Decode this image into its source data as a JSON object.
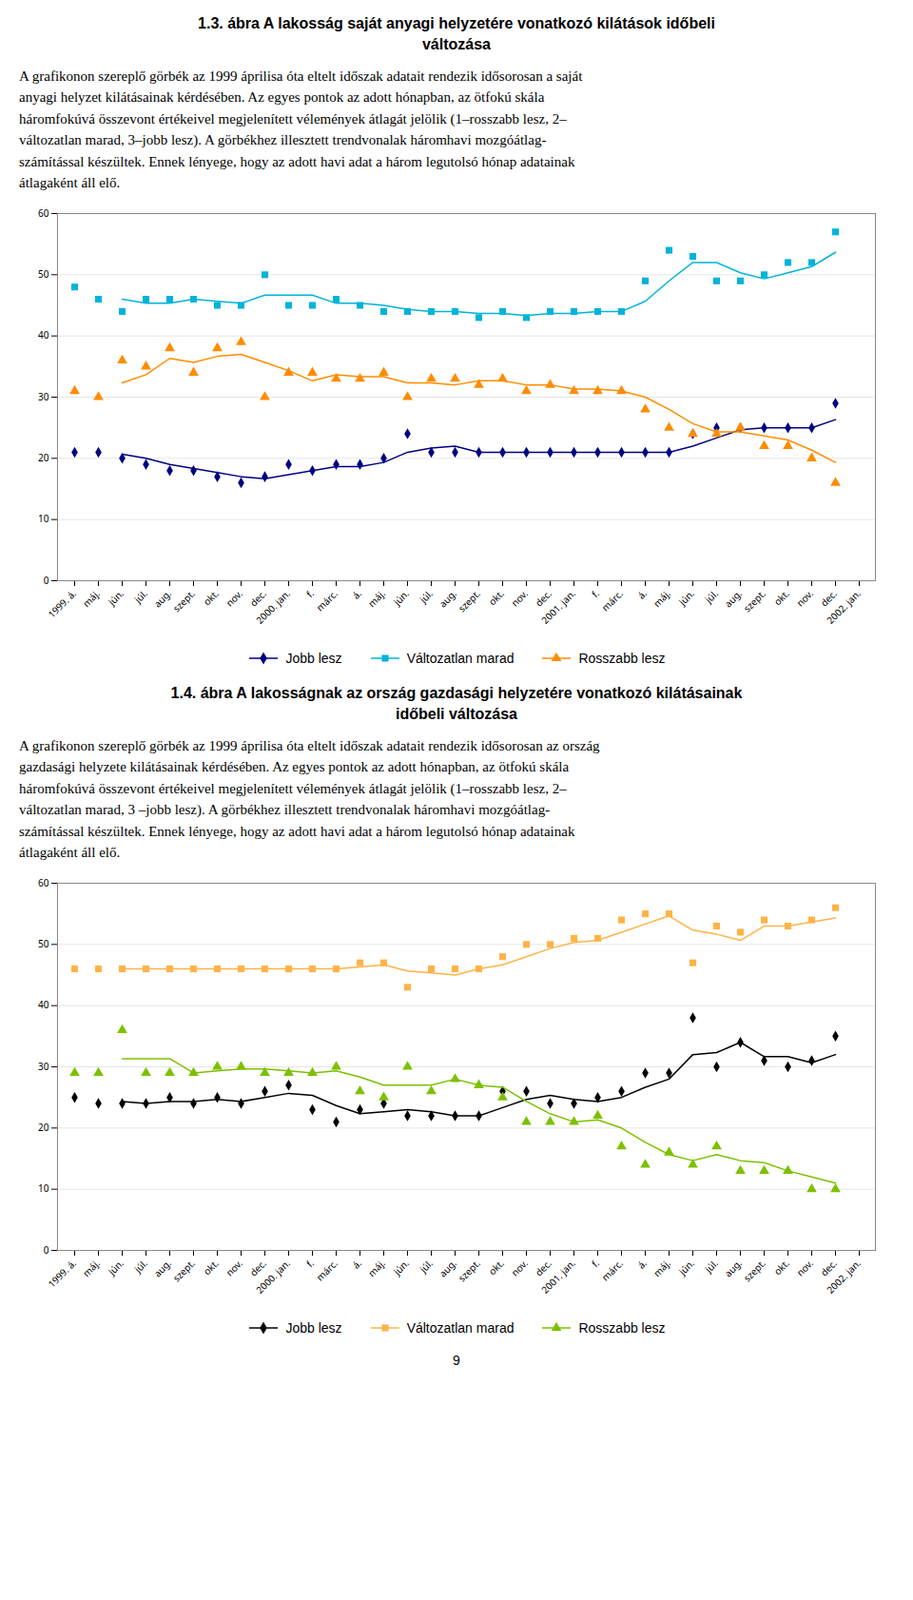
{
  "chart_data": [
    {
      "type": "scatter",
      "title": "1.3. ábra A lakosság saját anyagi helyzetére vonatkozó kilátások időbeli\nváltozása",
      "subtitle": "A grafikonon szereplő görbék az 1999 áprilisa óta eltelt időszak adatait rendezik idősorosan a saját\nanyagi helyzet kilátásainak kérdésében. Az egyes pontok az adott hónapban, az ötfokú skála\nháromfokúvá összevont értékeivel megjelenített vélemények átlagát jelölik (1–rosszabb lesz, 2–\nváltozatlan marad, 3–jobb lesz). A görbékhez illesztett trendvonalak háromhavi mozgóátlag-\nszámítással készültek. Ennek lényege, hogy az adott havi adat a három legutolsó hónap adatainak\nátlagaként áll elő.",
      "categories": [
        "1999. á.",
        "máj.",
        "jún.",
        "júl.",
        "aug.",
        "szept.",
        "okt.",
        "nov.",
        "dec.",
        "2000. jan.",
        "f.",
        "márc.",
        "á.",
        "máj.",
        "jún.",
        "júl.",
        "aug.",
        "szept.",
        "okt.",
        "nov.",
        "dec.",
        "2001. jan.",
        "f.",
        "márc.",
        "á.",
        "máj.",
        "jún.",
        "júl.",
        "aug.",
        "szept.",
        "okt.",
        "nov.",
        "dec.",
        "2002. jan."
      ],
      "ylim": [
        0,
        60
      ],
      "yticks": [
        0,
        10,
        20,
        30,
        40,
        50,
        60
      ],
      "grid": true,
      "legend": "bottom",
      "series": [
        {
          "name": "Jobb lesz",
          "color": "#000080",
          "marker": "diamond",
          "line_style": "solid",
          "values": [
            21,
            21,
            20,
            19,
            18,
            18,
            17,
            16,
            17,
            19,
            18,
            19,
            19,
            20,
            24,
            21,
            21,
            21,
            21,
            21,
            21,
            21,
            21,
            21,
            21,
            21,
            24,
            25,
            25,
            25,
            25,
            25,
            29,
            null
          ],
          "trend": [
            null,
            null,
            20.666666666666668,
            20,
            19,
            18.333333333333332,
            17.666666666666668,
            17,
            16.666666666666668,
            17.333333333333332,
            18,
            18.666666666666668,
            18.666666666666668,
            19.333333333333332,
            21,
            21.666666666666668,
            22,
            21,
            21,
            21,
            21,
            21,
            21,
            21,
            21,
            21,
            22,
            23.333333333333332,
            24.666666666666668,
            25,
            25,
            25,
            26.333333333333332,
            null
          ]
        },
        {
          "name": "Változatlan marad",
          "color": "#00B4D8",
          "marker": "square",
          "line_style": "solid",
          "values": [
            48,
            46,
            44,
            46,
            46,
            46,
            45,
            45,
            50,
            45,
            45,
            46,
            45,
            44,
            44,
            44,
            44,
            43,
            44,
            43,
            44,
            44,
            44,
            44,
            49,
            54,
            53,
            49,
            49,
            50,
            52,
            52,
            57,
            null
          ],
          "trend": [
            null,
            null,
            46,
            45.333333333333336,
            45.333333333333336,
            46,
            45.666666666666664,
            45.333333333333336,
            46.666666666666664,
            46.666666666666664,
            46.666666666666664,
            45.333333333333336,
            45.333333333333336,
            45,
            44.333333333333336,
            44,
            44,
            43.666666666666664,
            43.666666666666664,
            43.333333333333336,
            43.666666666666664,
            43.666666666666664,
            44,
            44,
            45.666666666666664,
            49,
            52,
            52,
            50.333333333333336,
            49.333333333333336,
            50.333333333333336,
            51.333333333333336,
            53.666666666666664,
            null
          ]
        },
        {
          "name": "Rosszabb lesz",
          "color": "#FF8C00",
          "marker": "triangle",
          "line_style": "solid",
          "values": [
            31,
            30,
            36,
            35,
            38,
            34,
            38,
            39,
            30,
            34,
            34,
            33,
            33,
            34,
            30,
            33,
            33,
            32,
            33,
            31,
            32,
            31,
            31,
            31,
            28,
            25,
            24,
            24,
            25,
            22,
            22,
            20,
            16,
            null
          ],
          "trend": [
            null,
            null,
            32.333333333333336,
            33.666666666666664,
            36.333333333333336,
            35.666666666666664,
            36.666666666666664,
            37,
            35.666666666666664,
            34.333333333333336,
            32.666666666666664,
            33.666666666666664,
            33.333333333333336,
            33.333333333333336,
            32.333333333333336,
            32.333333333333336,
            32,
            32.666666666666664,
            32.666666666666664,
            32,
            32,
            31.333333333333332,
            31.333333333333332,
            31,
            30,
            28,
            25.666666666666668,
            24.333333333333332,
            24.333333333333332,
            23.666666666666668,
            23,
            21.333333333333332,
            19.333333333333332,
            null
          ]
        }
      ]
    },
    {
      "type": "scatter",
      "title": "1.4. ábra A lakosságnak az ország gazdasági helyzetére vonatkozó kilátásainak\nidőbeli változása",
      "subtitle": "A grafikonon szereplő görbék az 1999 áprilisa óta eltelt időszak adatait rendezik idősorosan az ország\ngazdasági helyzete kilátásainak kérdésében. Az egyes pontok az adott hónapban, az ötfokú skála\nháromfokúvá összevont értékeivel megjelenített vélemények átlagát jelölik (1–rosszabb lesz, 2–\nváltozatlan marad, 3 –jobb lesz). A görbékhez illesztett trendvonalak háromhavi mozgóátlag-\nszámítással készültek. Ennek lényege, hogy az adott havi adat a három legutolsó hónap adatainak\nátlagaként áll elő.",
      "categories": [
        "1999. á.",
        "máj.",
        "jún.",
        "júl.",
        "aug.",
        "szept.",
        "okt.",
        "nov.",
        "dec.",
        "2000. jan.",
        "f.",
        "márc.",
        "á.",
        "máj.",
        "jún.",
        "júl.",
        "aug.",
        "szept.",
        "okt.",
        "nov.",
        "dec.",
        "2001. jan.",
        "f.",
        "márc.",
        "á.",
        "máj.",
        "jún.",
        "júl.",
        "aug.",
        "szept.",
        "okt.",
        "nov.",
        "dec.",
        "2002. jan."
      ],
      "ylim": [
        0,
        60
      ],
      "yticks": [
        0,
        10,
        20,
        30,
        40,
        50,
        60
      ],
      "grid": true,
      "legend": "bottom",
      "series": [
        {
          "name": "Jobb lesz",
          "color": "#000000",
          "marker": "diamond",
          "line_style": "solid",
          "values": [
            25,
            24,
            24,
            24,
            25,
            24,
            25,
            24,
            26,
            27,
            23,
            21,
            23,
            24,
            22,
            22,
            22,
            22,
            26,
            26,
            24,
            24,
            25,
            26,
            29,
            29,
            38,
            30,
            34,
            31,
            30,
            31,
            35,
            null
          ],
          "trend": [
            null,
            null,
            24.333333333333332,
            24,
            24.333333333333332,
            24.333333333333332,
            24.666666666666668,
            24.333333333333332,
            25,
            25.666666666666668,
            25.333333333333332,
            23.666666666666668,
            22.333333333333332,
            22.666666666666668,
            23,
            22.666666666666668,
            22,
            22,
            23.333333333333332,
            24.666666666666668,
            25.333333333333332,
            24.666666666666668,
            24.333333333333332,
            25,
            26.666666666666668,
            28,
            32,
            32.333333333333336,
            34,
            31.666666666666668,
            31.666666666666668,
            30.666666666666668,
            32,
            null
          ]
        },
        {
          "name": "Változatlan marad",
          "color": "#FFB347",
          "marker": "square",
          "line_style": "solid",
          "values": [
            46,
            46,
            46,
            46,
            46,
            46,
            46,
            46,
            46,
            46,
            46,
            46,
            47,
            47,
            43,
            46,
            46,
            46,
            48,
            50,
            50,
            51,
            51,
            54,
            55,
            55,
            47,
            53,
            52,
            54,
            53,
            54,
            56,
            null
          ],
          "trend": [
            null,
            null,
            46,
            46,
            46,
            46,
            46,
            46,
            46,
            46,
            46,
            46,
            46.333333333333336,
            46.666666666666664,
            45.666666666666664,
            45.333333333333336,
            45,
            46,
            46.666666666666664,
            48,
            49.333333333333336,
            50.333333333333336,
            50.666666666666664,
            52,
            53.333333333333336,
            54.666666666666664,
            52.333333333333336,
            51.666666666666664,
            50.666666666666664,
            53,
            53,
            53.666666666666664,
            54.333333333333336,
            null
          ]
        },
        {
          "name": "Rosszabb lesz",
          "color": "#7DC000",
          "marker": "triangle",
          "line_style": "solid",
          "values": [
            29,
            29,
            36,
            29,
            29,
            29,
            30,
            30,
            29,
            29,
            29,
            30,
            26,
            25,
            30,
            26,
            28,
            27,
            25,
            21,
            21,
            21,
            22,
            17,
            14,
            16,
            14,
            17,
            13,
            13,
            13,
            10,
            10,
            null
          ],
          "trend": [
            null,
            null,
            31.333333333333332,
            31.333333333333332,
            31.333333333333332,
            29,
            29.333333333333332,
            29.666666666666668,
            29.666666666666668,
            29.333333333333332,
            29,
            29.333333333333332,
            28.333333333333332,
            27,
            27,
            27,
            28,
            27,
            26.666666666666668,
            24.333333333333332,
            22.333333333333332,
            21,
            21.333333333333332,
            20,
            17.666666666666668,
            15.666666666666666,
            14.666666666666666,
            15.666666666666666,
            14.666666666666666,
            14.333333333333334,
            13,
            12,
            11,
            null
          ]
        }
      ]
    }
  ],
  "footer": "9"
}
